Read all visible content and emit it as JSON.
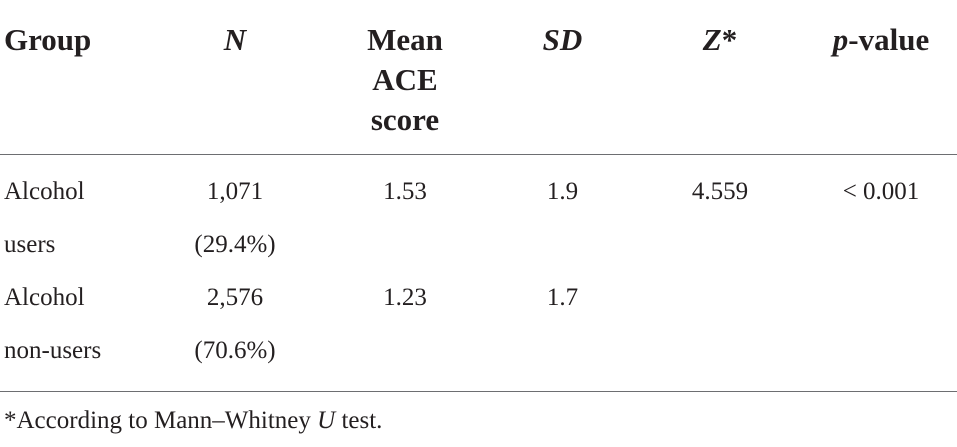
{
  "table": {
    "headers": {
      "group": "Group",
      "n": "N",
      "mean_line1": "Mean",
      "mean_line2": "ACE",
      "mean_line3": "score",
      "sd": "SD",
      "z": "Z",
      "z_suffix": "*",
      "p_italic": "p",
      "p_rest": "-value"
    },
    "rows": [
      {
        "group_line1": "Alcohol",
        "group_line2": "users",
        "n_count": "1,071",
        "n_pct": "(29.4%)",
        "mean": "1.53",
        "sd": "1.9",
        "z": "4.559",
        "p": "< 0.001"
      },
      {
        "group_line1": "Alcohol",
        "group_line2": "non-users",
        "n_count": "2,576",
        "n_pct": "(70.6%)",
        "mean": "1.23",
        "sd": "1.7",
        "z": "",
        "p": ""
      }
    ]
  },
  "footnote": {
    "before": "*According to Mann–Whitney ",
    "italic": "U",
    "after": " test."
  }
}
